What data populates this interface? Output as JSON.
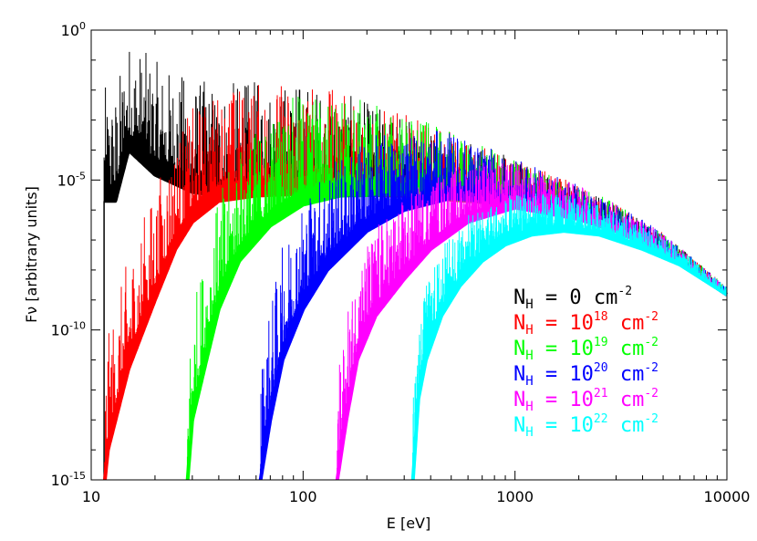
{
  "chart_data": {
    "type": "line",
    "title": "",
    "xlabel": "E [eV]",
    "ylabel": "Fν [arbitrary units]",
    "xscale": "log",
    "yscale": "log",
    "xlim": [
      10,
      10000
    ],
    "ylim": [
      1e-15,
      1
    ],
    "grid": false,
    "legend_position": "bottom-right",
    "x_ticks": [
      {
        "value": 10,
        "label": "10"
      },
      {
        "value": 100,
        "label": "100"
      },
      {
        "value": 1000,
        "label": "1000"
      },
      {
        "value": 10000,
        "label": "10000"
      }
    ],
    "y_ticks": [
      {
        "value": 1,
        "base": "10",
        "exp": "0"
      },
      {
        "value": 1e-05,
        "base": "10",
        "exp": "-5"
      },
      {
        "value": 1e-10,
        "base": "10",
        "exp": "-10"
      },
      {
        "value": 1e-15,
        "base": "10",
        "exp": "-15"
      }
    ],
    "series": [
      {
        "name": "N_H = 0 cm^-2",
        "legend": {
          "pre": "N",
          "sub": "H",
          "mid": " = 0 cm",
          "sup": "-2",
          "exp": ""
        },
        "color": "#000000",
        "cutoff": 11.5,
        "continuum": [
          [
            11.5,
            2e-06
          ],
          [
            13,
            2e-06
          ],
          [
            15,
            0.0001
          ],
          [
            20,
            1.5e-05
          ],
          [
            30,
            4e-06
          ],
          [
            40,
            3e-06
          ],
          [
            100,
            3.5e-06
          ],
          [
            300,
            3e-06
          ],
          [
            1000,
            1.5e-06
          ],
          [
            2000,
            5e-07
          ],
          [
            3000,
            2e-07
          ],
          [
            5000,
            4e-08
          ],
          [
            10000,
            1.5e-09
          ]
        ]
      },
      {
        "name": "N_H = 10^18 cm^-2",
        "legend": {
          "pre": "N",
          "sub": "H",
          "mid": " = 10",
          "sup": "18",
          "exp": " cm-2"
        },
        "color": "#ff0000",
        "cutoff": 11.6,
        "continuum": [
          [
            11.6,
            1e-15
          ],
          [
            12,
            1e-14
          ],
          [
            15,
            5e-12
          ],
          [
            20,
            1e-09
          ],
          [
            25,
            5e-08
          ],
          [
            30,
            4e-07
          ],
          [
            40,
            2e-06
          ],
          [
            60,
            3e-06
          ],
          [
            100,
            3.5e-06
          ],
          [
            300,
            3e-06
          ],
          [
            1000,
            1.5e-06
          ],
          [
            2000,
            5e-07
          ],
          [
            3000,
            2e-07
          ],
          [
            5000,
            4e-08
          ],
          [
            10000,
            1.5e-09
          ]
        ]
      },
      {
        "name": "N_H = 10^19 cm^-2",
        "legend": {
          "pre": "N",
          "sub": "H",
          "mid": " = 10",
          "sup": "19",
          "exp": " cm-2"
        },
        "color": "#00ff00",
        "cutoff": 28.5,
        "continuum": [
          [
            28.5,
            1e-15
          ],
          [
            30,
            1e-13
          ],
          [
            35,
            1e-11
          ],
          [
            40,
            5e-10
          ],
          [
            50,
            2e-08
          ],
          [
            70,
            3e-07
          ],
          [
            100,
            1.5e-06
          ],
          [
            150,
            3e-06
          ],
          [
            300,
            3.3e-06
          ],
          [
            1000,
            1.5e-06
          ],
          [
            2000,
            5e-07
          ],
          [
            3000,
            2e-07
          ],
          [
            5000,
            4e-08
          ],
          [
            10000,
            1.5e-09
          ]
        ]
      },
      {
        "name": "N_H = 10^20 cm^-2",
        "legend": {
          "pre": "N",
          "sub": "H",
          "mid": " = 10",
          "sup": "20",
          "exp": " cm-2"
        },
        "color": "#0000ff",
        "cutoff": 63,
        "continuum": [
          [
            63,
            1e-15
          ],
          [
            70,
            1e-13
          ],
          [
            80,
            1e-11
          ],
          [
            100,
            5e-10
          ],
          [
            130,
            1e-08
          ],
          [
            200,
            2e-07
          ],
          [
            300,
            1e-06
          ],
          [
            500,
            2.5e-06
          ],
          [
            1000,
            1.5e-06
          ],
          [
            2000,
            5e-07
          ],
          [
            3000,
            2e-07
          ],
          [
            5000,
            4e-08
          ],
          [
            10000,
            1.5e-09
          ]
        ]
      },
      {
        "name": "N_H = 10^21 cm^-2",
        "legend": {
          "pre": "N",
          "sub": "H",
          "mid": " = 10",
          "sup": "21",
          "exp": " cm-2"
        },
        "color": "#ff00ff",
        "cutoff": 145,
        "continuum": [
          [
            145,
            1e-15
          ],
          [
            160,
            1e-13
          ],
          [
            180,
            1e-11
          ],
          [
            220,
            3e-10
          ],
          [
            300,
            5e-09
          ],
          [
            400,
            5e-08
          ],
          [
            600,
            4e-07
          ],
          [
            1000,
            1.2e-06
          ],
          [
            2000,
            5e-07
          ],
          [
            3000,
            2e-07
          ],
          [
            5000,
            4e-08
          ],
          [
            10000,
            1.5e-09
          ]
        ]
      },
      {
        "name": "N_H = 10^22 cm^-2",
        "legend": {
          "pre": "N",
          "sub": "H",
          "mid": " = 10",
          "sup": "22",
          "exp": " cm-2"
        },
        "color": "#00ffff",
        "cutoff": 330,
        "continuum": [
          [
            330,
            1e-15
          ],
          [
            350,
            5e-13
          ],
          [
            380,
            1e-11
          ],
          [
            450,
            3e-10
          ],
          [
            550,
            3e-09
          ],
          [
            700,
            2e-08
          ],
          [
            900,
            7e-08
          ],
          [
            1200,
            1.5e-07
          ],
          [
            1700,
            2e-07
          ],
          [
            2500,
            1.5e-07
          ],
          [
            4000,
            5e-08
          ],
          [
            6000,
            1.5e-08
          ],
          [
            10000,
            1.5e-09
          ]
        ]
      }
    ]
  }
}
